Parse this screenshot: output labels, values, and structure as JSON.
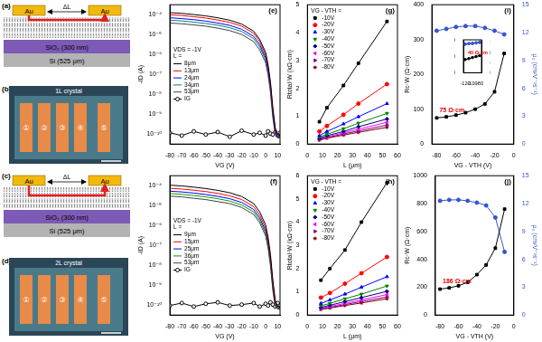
{
  "schematics": [
    {
      "panel": "(a)",
      "kind": "stack",
      "electrode": "Au",
      "spacing": "ΔL",
      "layers": [
        "SiO₂ (300 nm)",
        "Si (525 μm)"
      ],
      "crystal_layers": 1
    },
    {
      "panel": "(b)",
      "kind": "image",
      "title": "1L crystal",
      "contacts": [
        "①",
        "②",
        "③",
        "④",
        "⑤"
      ]
    },
    {
      "panel": "(c)",
      "kind": "stack",
      "electrode": "Au",
      "spacing": "ΔL",
      "layers": [
        "SiO₂ (300 nm)",
        "Si (525 μm)"
      ],
      "crystal_layers": 2
    },
    {
      "panel": "(d)",
      "kind": "image",
      "title": "2L crystal",
      "contacts": [
        "①",
        "②",
        "③",
        "④",
        "⑤"
      ]
    }
  ],
  "chart_data": [
    {
      "panel": "(e)",
      "type": "line",
      "x_label": "VG (V)",
      "y_label": "-ID (A)",
      "log": "y",
      "grid": false,
      "legend": "left",
      "legend_title": [
        "VDS = -1V",
        "L ="
      ],
      "x": [
        -80,
        -70,
        -60,
        -50,
        -40,
        -30,
        -20,
        -10,
        -5,
        0,
        2,
        4,
        6,
        8,
        10,
        12
      ],
      "xlim": [
        -80,
        12
      ],
      "xticks": [
        -80,
        -70,
        -60,
        -50,
        -40,
        -30,
        -20,
        -10,
        0,
        10
      ],
      "ylim": [
        3e-11,
        0.0003
      ],
      "yticks": [
        {
          "value": 1e-10,
          "label": "10⁻¹⁰"
        },
        {
          "value": 1e-09,
          "label": "10⁻⁹"
        },
        {
          "value": 1e-08,
          "label": "10⁻⁸"
        },
        {
          "value": 1e-07,
          "label": "10⁻⁷"
        },
        {
          "value": 1e-06,
          "label": "10⁻⁶"
        },
        {
          "value": 1e-05,
          "label": "10⁻⁵"
        },
        {
          "value": 0.0001,
          "label": "10⁻⁴"
        }
      ],
      "series": [
        {
          "name": "8μm",
          "color": "#000000",
          "line_style": "solid",
          "values": [
            0.00012,
            0.00011,
            9.6e-05,
            8.2e-05,
            6.6e-05,
            5e-05,
            3.2e-05,
            1.4e-05,
            5.5e-06,
            1.2e-06,
            3e-07,
            4e-08,
            2e-09,
            2e-10,
            9e-11,
            8e-11
          ]
        },
        {
          "name": "13μm",
          "color": "#ff0000",
          "line_style": "solid",
          "values": [
            9.4e-05,
            8.6e-05,
            7.5e-05,
            6.4e-05,
            5.1e-05,
            3.9e-05,
            2.5e-05,
            1.1e-05,
            4.3e-06,
            9e-07,
            2.3e-07,
            3e-08,
            1.5e-09,
            1.6e-10,
            8e-11,
            7e-11
          ]
        },
        {
          "name": "24μm",
          "color": "#0000ff",
          "line_style": "solid",
          "values": [
            6.6e-05,
            6e-05,
            5.3e-05,
            4.5e-05,
            3.6e-05,
            2.75e-05,
            1.75e-05,
            7.7e-06,
            3e-06,
            6.5e-07,
            1.6e-07,
            2.2e-08,
            1.1e-09,
            1.3e-10,
            7e-11,
            7e-11
          ]
        },
        {
          "name": "34μm",
          "color": "#008080",
          "line_style": "solid",
          "values": [
            5e-05,
            4.6e-05,
            4e-05,
            3.4e-05,
            2.8e-05,
            2.1e-05,
            1.35e-05,
            5.9e-06,
            2.3e-06,
            5e-07,
            1.2e-07,
            1.7e-08,
            9e-10,
            1.1e-10,
            7e-11,
            6e-11
          ]
        },
        {
          "name": "53μm",
          "color": "#404040",
          "line_style": "solid",
          "values": [
            3.6e-05,
            3.3e-05,
            2.9e-05,
            2.5e-05,
            2e-05,
            1.5e-05,
            9.6e-06,
            4.2e-06,
            1.6e-06,
            3.6e-07,
            9e-08,
            1.2e-08,
            6e-10,
            9e-11,
            6e-11,
            6e-11
          ]
        },
        {
          "name": "IG",
          "color": "#000000",
          "marker": "open-circle",
          "line_style": "solid",
          "values": [
            1.1e-10,
            8e-11,
            1.3e-10,
            9e-11,
            1.2e-10,
            7e-11,
            1.4e-10,
            9e-11,
            1.1e-10,
            8e-11,
            1.3e-10,
            1e-10,
            9e-11,
            1.2e-10,
            8e-11,
            1.1e-10
          ]
        }
      ]
    },
    {
      "panel": "(g)",
      "type": "line",
      "x_label": "L (μm)",
      "y_label": "Rtotal·W (kΩ·cm)",
      "grid": false,
      "legend": "upper left",
      "legend_title": [
        "VG - VTH ="
      ],
      "x": [
        8,
        13,
        24,
        34,
        53
      ],
      "xlim": [
        0,
        60
      ],
      "xticks": [
        0,
        10,
        20,
        30,
        40,
        50,
        60
      ],
      "ylim": [
        0,
        5
      ],
      "yticks": [
        0,
        1,
        2,
        3,
        4,
        5
      ],
      "series": [
        {
          "name": "-10V",
          "color": "#000000",
          "marker": "square",
          "line_style": "solid",
          "values": [
            0.8,
            1.3,
            2.1,
            2.9,
            4.4
          ]
        },
        {
          "name": "-20V",
          "color": "#ff0000",
          "marker": "circle",
          "line_style": "solid",
          "values": [
            0.45,
            0.65,
            1.05,
            1.45,
            2.15
          ]
        },
        {
          "name": "-30V",
          "color": "#0000ff",
          "marker": "triangle",
          "line_style": "solid",
          "values": [
            0.3,
            0.45,
            0.72,
            0.98,
            1.45
          ]
        },
        {
          "name": "-40V",
          "color": "#008000",
          "marker": "triangle-down",
          "line_style": "solid",
          "values": [
            0.25,
            0.35,
            0.55,
            0.75,
            1.1
          ]
        },
        {
          "name": "-50V",
          "color": "#000080",
          "marker": "diamond",
          "line_style": "solid",
          "values": [
            0.2,
            0.3,
            0.45,
            0.62,
            0.9
          ]
        },
        {
          "name": "-60V",
          "color": "#ff00ff",
          "marker": "triangle-left",
          "line_style": "solid",
          "values": [
            0.18,
            0.26,
            0.4,
            0.53,
            0.78
          ]
        },
        {
          "name": "-70V",
          "color": "#800080",
          "marker": "triangle-right",
          "line_style": "solid",
          "values": [
            0.16,
            0.23,
            0.36,
            0.47,
            0.68
          ]
        },
        {
          "name": "-80V",
          "color": "#800000",
          "marker": "star",
          "line_style": "solid",
          "values": [
            0.14,
            0.21,
            0.32,
            0.42,
            0.6
          ]
        }
      ]
    },
    {
      "panel": "(i)",
      "type": "line",
      "x_label": "VG - VTH (V)",
      "y_label": "Rc·W (Ω·cm)",
      "y2_label": "μ₀ (cm²V⁻¹s⁻¹)",
      "grid": false,
      "x": [
        -80,
        -70,
        -60,
        -50,
        -40,
        -30,
        -20,
        -10
      ],
      "xlim": [
        -85,
        0
      ],
      "xticks": [
        -80,
        -60,
        -40,
        -20,
        0
      ],
      "ylim": [
        0,
        400
      ],
      "yticks": [
        0,
        100,
        200,
        300,
        400
      ],
      "y2lim": [
        0,
        15
      ],
      "y2ticks": [
        0,
        3,
        6,
        9,
        12,
        15
      ],
      "annotations": [
        {
          "text": "75 Ω·cm",
          "color": "#e00000"
        }
      ],
      "series": [
        {
          "color": "#000000",
          "marker": "square",
          "line_style": "solid",
          "values": [
            75,
            78,
            83,
            90,
            100,
            115,
            150,
            260
          ]
        },
        {
          "color": "#3355cc",
          "marker": "circle",
          "line_style": "solid",
          "axis": "y2",
          "values": [
            12.2,
            12.4,
            12.6,
            12.7,
            12.7,
            12.5,
            12.2,
            11.8
          ]
        }
      ],
      "inset": {
        "type": "line",
        "grid": false,
        "x": [
          -120,
          -110,
          -100,
          -90,
          -80
        ],
        "xlim": [
          -125,
          -75
        ],
        "xticks": [
          -120,
          -100,
          -80
        ],
        "ylim": [
          0,
          100
        ],
        "yticks": [
          0,
          50,
          100
        ],
        "y2lim": [
          0,
          13
        ],
        "y2ticks": [
          0,
          4,
          8,
          12
        ],
        "annotations": [
          {
            "text": "40 Ω·cm",
            "color": "#e00000"
          }
        ],
        "series": [
          {
            "color": "#000000",
            "marker": "square",
            "line_style": "solid",
            "values": [
              40,
              43,
              46,
              49,
              52
            ]
          },
          {
            "color": "#3355cc",
            "marker": "circle",
            "line_style": "solid",
            "axis": "y2",
            "values": [
              11.3,
              11.5,
              11.6,
              11.8,
              12.0
            ]
          }
        ]
      }
    },
    {
      "panel": "(f)",
      "type": "line",
      "x_label": "VG (V)",
      "y_label": "-ID (A)",
      "log": "y",
      "grid": false,
      "legend": "left",
      "legend_title": [
        "VDS = -1V",
        "L ="
      ],
      "x": [
        -80,
        -70,
        -60,
        -50,
        -40,
        -30,
        -20,
        -10,
        -5,
        0,
        2,
        4,
        6,
        8,
        10,
        12
      ],
      "xlim": [
        -80,
        12
      ],
      "xticks": [
        -80,
        -70,
        -60,
        -50,
        -40,
        -30,
        -20,
        -10,
        0,
        10
      ],
      "ylim": [
        3e-11,
        0.0003
      ],
      "yticks": [
        {
          "value": 1e-10,
          "label": "10⁻¹⁰"
        },
        {
          "value": 1e-09,
          "label": "10⁻⁹"
        },
        {
          "value": 1e-08,
          "label": "10⁻⁸"
        },
        {
          "value": 1e-07,
          "label": "10⁻⁷"
        },
        {
          "value": 1e-06,
          "label": "10⁻⁶"
        },
        {
          "value": 1e-05,
          "label": "10⁻⁵"
        },
        {
          "value": 0.0001,
          "label": "10⁻⁴"
        }
      ],
      "series": [
        {
          "name": "9μm",
          "color": "#000000",
          "line_style": "solid",
          "values": [
            0.0001,
            9.2e-05,
            8e-05,
            6.8e-05,
            5.5e-05,
            4.2e-05,
            2.7e-05,
            1.2e-05,
            4.6e-06,
            1e-06,
            2.5e-07,
            3.3e-08,
            1.7e-09,
            1.7e-10,
            8e-11,
            8e-11
          ]
        },
        {
          "name": "15μm",
          "color": "#ff0000",
          "line_style": "solid",
          "values": [
            7e-05,
            6.4e-05,
            5.6e-05,
            4.8e-05,
            3.9e-05,
            2.9e-05,
            1.9e-05,
            8.4e-06,
            3.2e-06,
            7e-07,
            1.8e-07,
            2.3e-08,
            1.2e-09,
            1.3e-10,
            7e-11,
            7e-11
          ]
        },
        {
          "name": "25μm",
          "color": "#0000ff",
          "line_style": "solid",
          "values": [
            5e-05,
            4.6e-05,
            4e-05,
            3.4e-05,
            2.75e-05,
            2.1e-05,
            1.35e-05,
            6e-06,
            2.3e-06,
            5e-07,
            1.3e-07,
            1.7e-08,
            9e-10,
            1.1e-10,
            7e-11,
            6e-11
          ]
        },
        {
          "name": "36μm",
          "color": "#00a000",
          "line_style": "solid",
          "values": [
            3.8e-05,
            3.5e-05,
            3e-05,
            2.6e-05,
            2.1e-05,
            1.6e-05,
            1e-05,
            4.6e-06,
            1.7e-06,
            3.8e-07,
            9.5e-08,
            1.3e-08,
            6.5e-10,
            9e-11,
            6e-11,
            6e-11
          ]
        },
        {
          "name": "53μm",
          "color": "#404040",
          "line_style": "solid",
          "values": [
            2.8e-05,
            2.6e-05,
            2.2e-05,
            1.9e-05,
            1.5e-05,
            1.2e-05,
            7.6e-06,
            3.4e-06,
            1.3e-06,
            2.8e-07,
            7e-08,
            9e-09,
            5e-10,
            8e-11,
            6e-11,
            6e-11
          ]
        },
        {
          "name": "IG",
          "color": "#000000",
          "marker": "open-circle",
          "line_style": "solid",
          "values": [
            9e-11,
            1.2e-10,
            8e-11,
            1.1e-10,
            1.3e-10,
            9e-11,
            1e-10,
            1.2e-10,
            8e-11,
            1.1e-10,
            9e-11,
            1.3e-10,
            1e-10,
            8e-11,
            1.2e-10,
            9e-11
          ]
        }
      ]
    },
    {
      "panel": "(h)",
      "type": "line",
      "x_label": "L (μm)",
      "y_label": "Rtotal·W (kΩ·cm)",
      "grid": false,
      "legend": "upper left",
      "legend_title": [
        "VG - VTH ="
      ],
      "x": [
        9,
        15,
        25,
        36,
        53
      ],
      "xlim": [
        0,
        60
      ],
      "xticks": [
        0,
        10,
        20,
        30,
        40,
        50,
        60
      ],
      "ylim": [
        0,
        6
      ],
      "yticks": [
        0,
        1,
        2,
        3,
        4,
        5,
        6
      ],
      "series": [
        {
          "name": "-10V",
          "color": "#000000",
          "marker": "square",
          "line_style": "solid",
          "values": [
            1.5,
            2.0,
            2.8,
            4.0,
            5.7
          ]
        },
        {
          "name": "-20V",
          "color": "#ff0000",
          "marker": "circle",
          "line_style": "solid",
          "values": [
            0.75,
            0.95,
            1.35,
            1.8,
            2.5
          ]
        },
        {
          "name": "-30V",
          "color": "#0000ff",
          "marker": "triangle",
          "line_style": "solid",
          "values": [
            0.5,
            0.65,
            0.9,
            1.2,
            1.65
          ]
        },
        {
          "name": "-40V",
          "color": "#008000",
          "marker": "triangle-down",
          "line_style": "solid",
          "values": [
            0.4,
            0.5,
            0.7,
            0.9,
            1.25
          ]
        },
        {
          "name": "-50V",
          "color": "#000080",
          "marker": "diamond",
          "line_style": "solid",
          "values": [
            0.33,
            0.42,
            0.58,
            0.75,
            1.02
          ]
        },
        {
          "name": "-60V",
          "color": "#ff00ff",
          "marker": "triangle-left",
          "line_style": "solid",
          "values": [
            0.29,
            0.37,
            0.5,
            0.65,
            0.88
          ]
        },
        {
          "name": "-70V",
          "color": "#800080",
          "marker": "triangle-right",
          "line_style": "solid",
          "values": [
            0.26,
            0.33,
            0.45,
            0.58,
            0.78
          ]
        },
        {
          "name": "-80V",
          "color": "#800000",
          "marker": "star",
          "line_style": "solid",
          "values": [
            0.24,
            0.3,
            0.41,
            0.52,
            0.7
          ]
        }
      ]
    },
    {
      "panel": "(j)",
      "type": "line",
      "x_label": "VG - VTH (V)",
      "y_label": "Rc·W (Ω·cm)",
      "y2_label": "μ₀ (cm²V⁻¹s⁻¹)",
      "grid": false,
      "x": [
        -80,
        -70,
        -60,
        -50,
        -40,
        -30,
        -20,
        -10
      ],
      "xlim": [
        -85,
        0
      ],
      "xticks": [
        -80,
        -60,
        -40,
        -20,
        0
      ],
      "ylim": [
        0,
        1000
      ],
      "yticks": [
        0,
        200,
        400,
        600,
        800,
        1000
      ],
      "y2lim": [
        0,
        15
      ],
      "y2ticks": [
        0,
        3,
        6,
        9,
        12,
        15
      ],
      "annotations": [
        {
          "text": "186 Ω·cm",
          "color": "#e00000"
        }
      ],
      "series": [
        {
          "color": "#000000",
          "marker": "square",
          "line_style": "solid",
          "values": [
            186,
            195,
            210,
            235,
            290,
            360,
            480,
            760
          ]
        },
        {
          "color": "#3355cc",
          "marker": "circle",
          "line_style": "solid",
          "axis": "y2",
          "values": [
            12.3,
            12.4,
            12.4,
            12.3,
            12.1,
            11.8,
            10.5,
            6.8
          ]
        }
      ]
    }
  ]
}
